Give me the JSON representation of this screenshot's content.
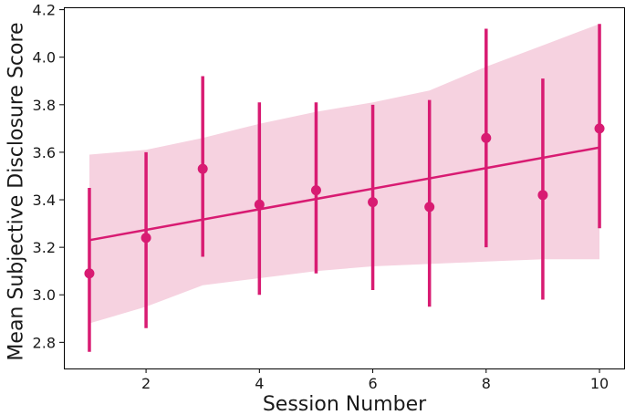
{
  "chart_data": {
    "type": "scatter",
    "title": "",
    "xlabel": "Session Number",
    "ylabel": "Mean Subjective Disclosure Score",
    "xlim": [
      0.55,
      10.45
    ],
    "ylim": [
      2.69,
      4.21
    ],
    "xticks": [
      2,
      4,
      6,
      8,
      10
    ],
    "yticks": [
      2.8,
      3.0,
      3.2,
      3.4,
      3.6,
      3.8,
      4.0,
      4.2
    ],
    "ytick_labels": [
      "2.8",
      "3.0",
      "3.2",
      "3.4",
      "3.6",
      "3.8",
      "4.0",
      "4.2"
    ],
    "grid": false,
    "legend": "none",
    "color": "#d81b72",
    "band_color": "#f6d2e0",
    "points": {
      "x": [
        1,
        2,
        3,
        4,
        5,
        6,
        7,
        8,
        9,
        10
      ],
      "y": [
        3.09,
        3.24,
        3.53,
        3.38,
        3.44,
        3.39,
        3.37,
        3.66,
        3.42,
        3.7
      ],
      "err_low": [
        2.76,
        2.86,
        3.16,
        3.0,
        3.09,
        3.02,
        2.95,
        3.2,
        2.98,
        3.28
      ],
      "err_high": [
        3.45,
        3.6,
        3.92,
        3.81,
        3.81,
        3.8,
        3.82,
        4.12,
        3.91,
        4.14
      ]
    },
    "regression": {
      "x": [
        1,
        10
      ],
      "y": [
        3.23,
        3.62
      ]
    },
    "confidence_band": {
      "x": [
        1,
        2,
        3,
        4,
        5,
        6,
        7,
        8,
        9,
        10
      ],
      "upper": [
        3.59,
        3.61,
        3.66,
        3.72,
        3.77,
        3.81,
        3.86,
        3.96,
        4.05,
        4.14
      ],
      "lower": [
        2.88,
        2.95,
        3.04,
        3.07,
        3.1,
        3.12,
        3.13,
        3.14,
        3.15,
        3.15
      ]
    }
  }
}
